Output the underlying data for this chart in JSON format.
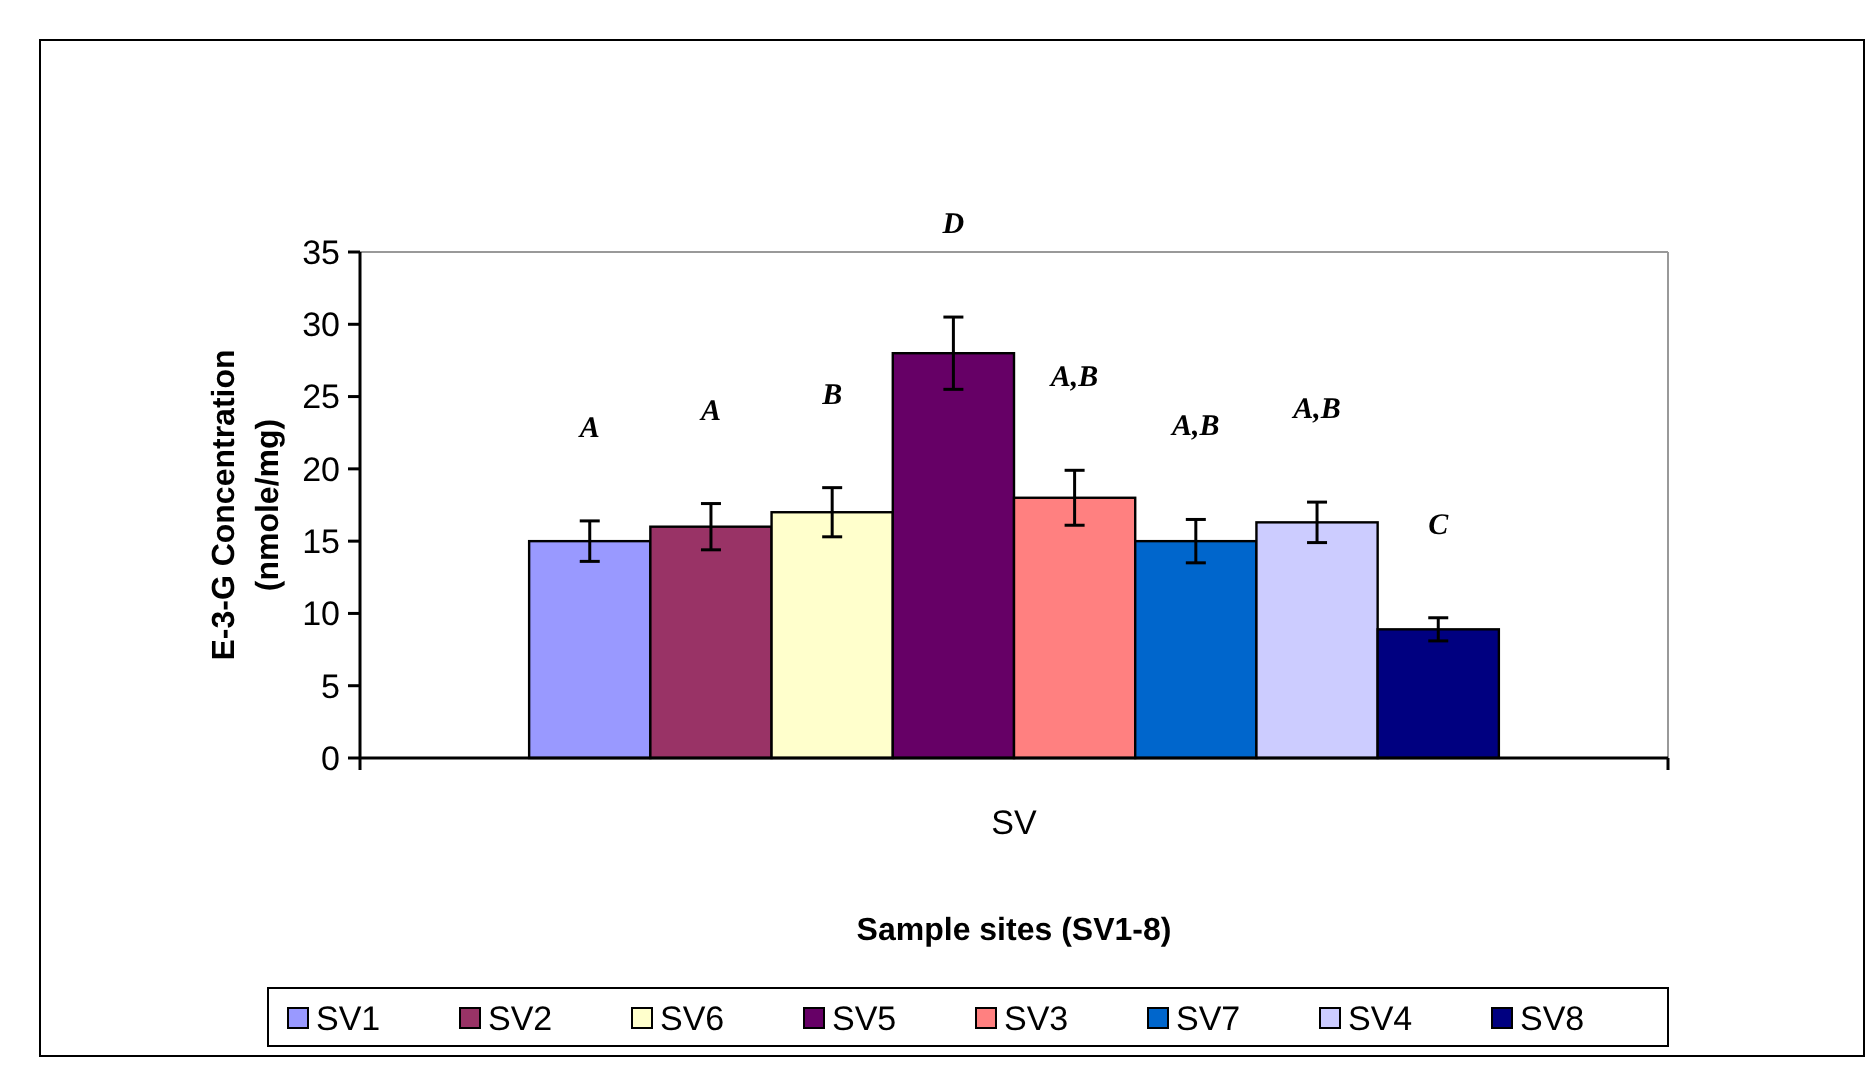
{
  "chart_data": {
    "type": "bar",
    "categories": [
      "SV"
    ],
    "xlabel": "Sample sites (SV1-8)",
    "ylabel": "E-3-G Concentration (nmole/mg)",
    "series": [
      {
        "name": "SV1",
        "color": "#9999ff",
        "values": [
          15.0
        ],
        "errors": [
          1.4
        ]
      },
      {
        "name": "SV2",
        "color": "#993366",
        "values": [
          16.0
        ],
        "errors": [
          1.6
        ]
      },
      {
        "name": "SV6",
        "color": "#ffffcc",
        "values": [
          17.0
        ],
        "errors": [
          1.7
        ]
      },
      {
        "name": "SV5",
        "color": "#660066",
        "values": [
          28.0
        ],
        "errors": [
          2.5
        ]
      },
      {
        "name": "SV3",
        "color": "#ff8080",
        "values": [
          18.0
        ],
        "errors": [
          1.9
        ]
      },
      {
        "name": "SV7",
        "color": "#0066cc",
        "values": [
          15.0
        ],
        "errors": [
          1.5
        ]
      },
      {
        "name": "SV4",
        "color": "#ccccff",
        "values": [
          16.3
        ],
        "errors": [
          1.4
        ]
      },
      {
        "name": "SV8",
        "color": "#000080",
        "values": [
          8.9
        ],
        "errors": [
          0.8
        ]
      }
    ],
    "annotations": [
      "A",
      "A",
      "B",
      "D",
      "A,B",
      "A,B",
      "A,B",
      "C"
    ],
    "ylim": [
      0,
      35
    ],
    "yticks": [
      0,
      5,
      10,
      15,
      20,
      25,
      30,
      35
    ],
    "grid": false,
    "legend": "bottom"
  }
}
